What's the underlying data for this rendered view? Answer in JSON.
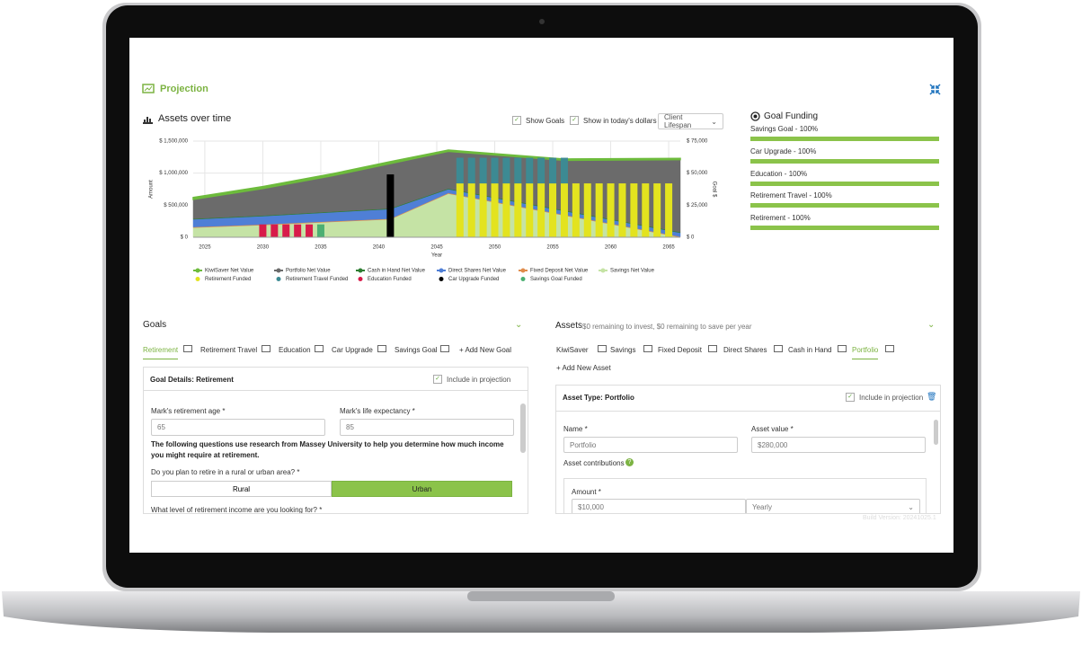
{
  "header": {
    "title": "Projection"
  },
  "chart_panel": {
    "title": "Assets over time",
    "show_goals": "Show Goals",
    "todays_dollars": "Show in today's dollars",
    "range_select": "Client Lifespan"
  },
  "chart_data": {
    "type": "area",
    "xlabel": "Year",
    "ylabel": "Amount",
    "y2label": "Goal $",
    "grid": true,
    "xlim": [
      2024,
      2066
    ],
    "xticks": [
      2025,
      2030,
      2035,
      2040,
      2045,
      2050,
      2055,
      2060,
      2065
    ],
    "ylim": [
      0,
      1500000
    ],
    "yticks": [
      {
        "value": 0,
        "label": "$ 0"
      },
      {
        "value": 500000,
        "label": "$ 500,000"
      },
      {
        "value": 1000000,
        "label": "$ 1,000,000"
      },
      {
        "value": 1500000,
        "label": "$ 1,500,000"
      }
    ],
    "y2lim": [
      0,
      75000
    ],
    "y2ticks": [
      {
        "value": 0,
        "label": "$ 0"
      },
      {
        "value": 25000,
        "label": "$ 25,000"
      },
      {
        "value": 50000,
        "label": "$ 50,000"
      },
      {
        "value": 75000,
        "label": "$ 75,000"
      }
    ],
    "series": [
      {
        "name": "KiwiSaver Net Value",
        "color": "#6dbb3c",
        "x": [
          2024,
          2030,
          2036,
          2041,
          2046,
          2056,
          2066
        ],
        "values": [
          30000,
          30000,
          30000,
          30000,
          20000,
          20000,
          20000
        ]
      },
      {
        "name": "Portfolio Net Value",
        "color": "#6b6b6b",
        "x": [
          2024,
          2030,
          2036,
          2041,
          2046,
          2056,
          2066
        ],
        "values": [
          300000,
          420000,
          560000,
          700000,
          580000,
          780000,
          1130000
        ]
      },
      {
        "name": "Cash in Hand Net Value",
        "color": "#2e7d32",
        "x": [
          2024,
          2030,
          2036,
          2041,
          2046,
          2056,
          2066
        ],
        "values": [
          10000,
          10000,
          10000,
          10000,
          10000,
          10000,
          10000
        ]
      },
      {
        "name": "Direct Shares Net Value",
        "color": "#4f7fd6",
        "x": [
          2024,
          2030,
          2036,
          2041,
          2046,
          2056,
          2066
        ],
        "values": [
          120000,
          130000,
          140000,
          150000,
          60000,
          60000,
          60000
        ]
      },
      {
        "name": "Fixed Deposit Net Value",
        "color": "#e08c4c",
        "x": [
          2024,
          2030,
          2036,
          2041,
          2046,
          2056,
          2066
        ],
        "values": [
          10000,
          10000,
          10000,
          10000,
          10000,
          10000,
          10000
        ]
      },
      {
        "name": "Savings Net Value",
        "color": "#c5e3a5",
        "x": [
          2024,
          2030,
          2036,
          2041,
          2046,
          2056,
          2066
        ],
        "values": [
          150000,
          190000,
          240000,
          280000,
          680000,
          340000,
          0
        ]
      },
      {
        "name": "Retirement Funded",
        "color": "#e3e31f",
        "axis": "y2",
        "x": [
          2047,
          2048,
          2049,
          2050,
          2051,
          2052,
          2053,
          2054,
          2055,
          2056,
          2057,
          2058,
          2059,
          2060,
          2061,
          2062,
          2063,
          2064,
          2065
        ],
        "values": [
          42000,
          42000,
          42000,
          42000,
          42000,
          42000,
          42000,
          42000,
          42000,
          42000,
          42000,
          42000,
          42000,
          42000,
          42000,
          42000,
          42000,
          42000,
          42000
        ]
      },
      {
        "name": "Retirement Travel Funded",
        "color": "#3d8a93",
        "axis": "y2",
        "x": [
          2047,
          2048,
          2049,
          2050,
          2051,
          2052,
          2053,
          2054,
          2055,
          2056
        ],
        "values": [
          20000,
          20000,
          20000,
          20000,
          20000,
          20000,
          20000,
          20000,
          20000,
          20000
        ]
      },
      {
        "name": "Education Funded",
        "color": "#d81b4a",
        "axis": "y2",
        "x": [
          2030,
          2031,
          2032,
          2033,
          2034
        ],
        "values": [
          10000,
          10000,
          10000,
          10000,
          10000
        ]
      },
      {
        "name": "Car Upgrade Funded",
        "color": "#000000",
        "axis": "y2",
        "x": [
          2041
        ],
        "values": [
          49000
        ]
      },
      {
        "name": "Savings Goal Funded",
        "color": "#4caf72",
        "axis": "y2",
        "x": [
          2035
        ],
        "values": [
          10000
        ]
      }
    ]
  },
  "goal_funding": {
    "title": "Goal Funding",
    "items": [
      {
        "label": "Savings Goal - 100%",
        "percent": 100
      },
      {
        "label": "Car Upgrade - 100%",
        "percent": 100
      },
      {
        "label": "Education - 100%",
        "percent": 100
      },
      {
        "label": "Retirement Travel - 100%",
        "percent": 100
      },
      {
        "label": "Retirement - 100%",
        "percent": 100
      }
    ]
  },
  "goals": {
    "title": "Goals",
    "tabs": [
      "Retirement",
      "Retirement Travel",
      "Education",
      "Car Upgrade",
      "Savings Goal",
      "+ Add New Goal"
    ],
    "details_title": "Goal Details: Retirement",
    "include": "Include in projection",
    "retirement_age_label": "Mark's retirement age *",
    "retirement_age": "65",
    "life_expectancy_label": "Mark's life expectancy *",
    "life_expectancy": "85",
    "note": "The following questions use research from Massey University to help you determine how much income you might require at retirement.",
    "area_question": "Do you plan to retire in a rural or urban area? *",
    "options": [
      "Rural",
      "Urban"
    ],
    "income_question": "What level of retirement income are you looking for? *"
  },
  "assets": {
    "title": "Assets",
    "subtitle": "$0 remaining to invest, $0 remaining to save per year",
    "tabs": [
      "KiwiSaver",
      "Savings",
      "Fixed Deposit",
      "Direct Shares",
      "Cash in Hand",
      "Portfolio"
    ],
    "add": "+ Add New Asset",
    "details_title": "Asset Type: Portfolio",
    "include": "Include in projection",
    "name_label": "Name *",
    "name": "Portfolio",
    "value_label": "Asset value *",
    "value": "$280,000",
    "contributions": "Asset contributions",
    "amount_label": "Amount *",
    "amount": "$10,000",
    "frequency": "Yearly"
  },
  "build_version": "Build Version: 20241025.1"
}
